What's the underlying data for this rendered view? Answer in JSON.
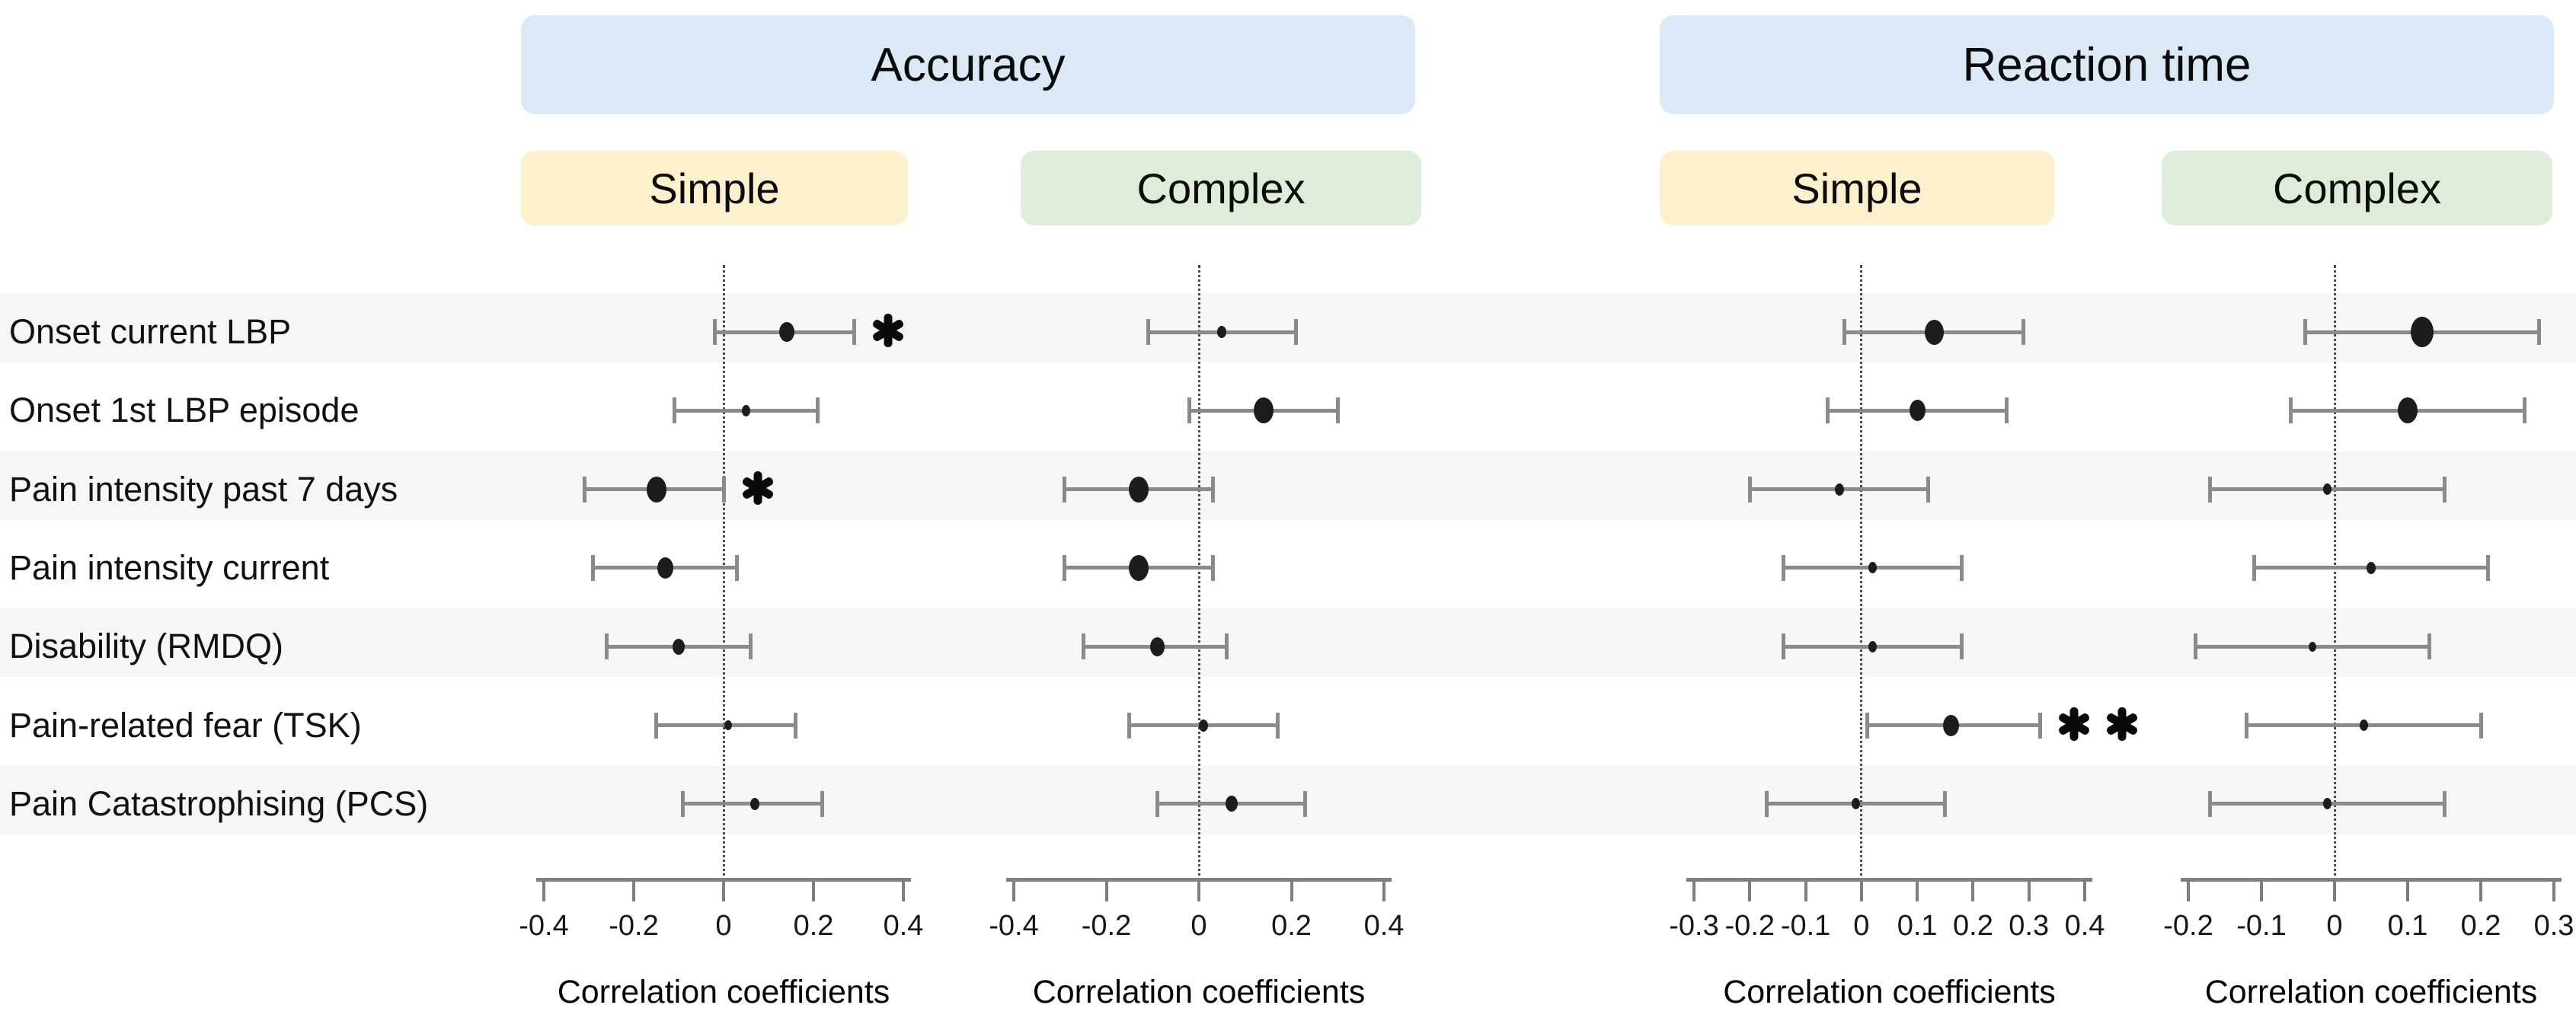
{
  "figure": {
    "group_headers": [
      {
        "label": "Accuracy"
      },
      {
        "label": "Reaction time"
      }
    ],
    "colors": {
      "group_header_bg": "#dbe9f6",
      "simple_header_bg": "#fdf0cd",
      "complex_header_bg": "#ddedd9",
      "stripe": "#f6f6f6",
      "error_bar": "#8a8a8a",
      "marker": "#1c1c1c",
      "zero_line": "#4a4a4a",
      "axis": "#7f7f7f",
      "text": "#000000"
    }
  },
  "rows": [
    "Onset current LBP",
    "Onset 1st LBP episode",
    "Pain intensity past 7 days",
    "Pain intensity current",
    "Disability (RMDQ)",
    "Pain-related fear (TSK)",
    "Pain Catastrophising (PCS)"
  ],
  "chart_data": [
    {
      "type": "scatter",
      "subtype": "forest-dot-ci",
      "group": "Accuracy",
      "condition": "Simple",
      "xlabel": "Correlation coefficients",
      "xlim": [
        -0.45,
        0.45
      ],
      "xticks": [
        -0.4,
        -0.2,
        0,
        0.2,
        0.4
      ],
      "xtick_labels": [
        "-0.4",
        "-0.2",
        "0",
        "0.2",
        "0.4"
      ],
      "zero_reference_line": true,
      "categories": [
        "Onset current LBP",
        "Onset 1st LBP episode",
        "Pain intensity past 7 days",
        "Pain intensity current",
        "Disability (RMDQ)",
        "Pain-related fear (TSK)",
        "Pain Catastrophising (PCS)"
      ],
      "points": [
        {
          "value": 0.14,
          "ci": [
            -0.02,
            0.29
          ],
          "marker_size": 20,
          "significance": "*"
        },
        {
          "value": 0.05,
          "ci": [
            -0.11,
            0.21
          ],
          "marker_size": 11,
          "significance": ""
        },
        {
          "value": -0.15,
          "ci": [
            -0.31,
            0.0
          ],
          "marker_size": 26,
          "significance": "*"
        },
        {
          "value": -0.13,
          "ci": [
            -0.29,
            0.03
          ],
          "marker_size": 21,
          "significance": ""
        },
        {
          "value": -0.1,
          "ci": [
            -0.26,
            0.06
          ],
          "marker_size": 16,
          "significance": ""
        },
        {
          "value": 0.01,
          "ci": [
            -0.15,
            0.16
          ],
          "marker_size": 10,
          "significance": ""
        },
        {
          "value": 0.07,
          "ci": [
            -0.09,
            0.22
          ],
          "marker_size": 12,
          "significance": ""
        }
      ]
    },
    {
      "type": "scatter",
      "subtype": "forest-dot-ci",
      "group": "Accuracy",
      "condition": "Complex",
      "xlabel": "Correlation coefficients",
      "xlim": [
        -0.45,
        0.45
      ],
      "xticks": [
        -0.4,
        -0.2,
        0,
        0.2,
        0.4
      ],
      "xtick_labels": [
        "-0.4",
        "-0.2",
        "0",
        "0.2",
        "0.4"
      ],
      "zero_reference_line": true,
      "categories": [
        "Onset current LBP",
        "Onset 1st LBP episode",
        "Pain intensity past 7 days",
        "Pain intensity current",
        "Disability (RMDQ)",
        "Pain-related fear (TSK)",
        "Pain Catastrophising (PCS)"
      ],
      "points": [
        {
          "value": 0.05,
          "ci": [
            -0.11,
            0.21
          ],
          "marker_size": 12,
          "significance": ""
        },
        {
          "value": 0.14,
          "ci": [
            -0.02,
            0.3
          ],
          "marker_size": 26,
          "significance": ""
        },
        {
          "value": -0.13,
          "ci": [
            -0.29,
            0.03
          ],
          "marker_size": 26,
          "significance": ""
        },
        {
          "value": -0.13,
          "ci": [
            -0.29,
            0.03
          ],
          "marker_size": 26,
          "significance": ""
        },
        {
          "value": -0.09,
          "ci": [
            -0.25,
            0.06
          ],
          "marker_size": 19,
          "significance": ""
        },
        {
          "value": 0.01,
          "ci": [
            -0.15,
            0.17
          ],
          "marker_size": 12,
          "significance": ""
        },
        {
          "value": 0.07,
          "ci": [
            -0.09,
            0.23
          ],
          "marker_size": 16,
          "significance": ""
        }
      ]
    },
    {
      "type": "scatter",
      "subtype": "forest-dot-ci",
      "group": "Reaction time",
      "condition": "Simple",
      "xlabel": "Correlation coefficients",
      "xlim": [
        -0.35,
        0.45
      ],
      "xticks": [
        -0.3,
        -0.2,
        -0.1,
        0,
        0.1,
        0.2,
        0.3,
        0.4
      ],
      "xtick_labels": [
        "-0.3",
        "-0.2",
        "-0.1",
        "0",
        "0.1",
        "0.2",
        "0.3",
        "0.4"
      ],
      "zero_reference_line": true,
      "categories": [
        "Onset current LBP",
        "Onset 1st LBP episode",
        "Pain intensity past 7 days",
        "Pain intensity current",
        "Disability (RMDQ)",
        "Pain-related fear (TSK)",
        "Pain Catastrophising (PCS)"
      ],
      "points": [
        {
          "value": 0.13,
          "ci": [
            -0.03,
            0.29
          ],
          "marker_size": 25,
          "significance": ""
        },
        {
          "value": 0.1,
          "ci": [
            -0.06,
            0.26
          ],
          "marker_size": 21,
          "significance": ""
        },
        {
          "value": -0.04,
          "ci": [
            -0.2,
            0.12
          ],
          "marker_size": 12,
          "significance": ""
        },
        {
          "value": 0.02,
          "ci": [
            -0.14,
            0.18
          ],
          "marker_size": 11,
          "significance": ""
        },
        {
          "value": 0.02,
          "ci": [
            -0.14,
            0.18
          ],
          "marker_size": 11,
          "significance": ""
        },
        {
          "value": 0.16,
          "ci": [
            0.01,
            0.32
          ],
          "marker_size": 21,
          "significance": "**"
        },
        {
          "value": -0.01,
          "ci": [
            -0.17,
            0.15
          ],
          "marker_size": 11,
          "significance": ""
        }
      ]
    },
    {
      "type": "scatter",
      "subtype": "forest-dot-ci",
      "group": "Reaction time",
      "condition": "Complex",
      "xlabel": "Correlation coefficients",
      "xlim": [
        -0.25,
        0.35
      ],
      "xticks": [
        -0.2,
        -0.1,
        0,
        0.1,
        0.2,
        0.3
      ],
      "xtick_labels": [
        "-0.2",
        "-0.1",
        "0",
        "0.1",
        "0.2",
        "0.3"
      ],
      "zero_reference_line": true,
      "categories": [
        "Onset current LBP",
        "Onset 1st LBP episode",
        "Pain intensity past 7 days",
        "Pain intensity current",
        "Disability (RMDQ)",
        "Pain-related fear (TSK)",
        "Pain Catastrophising (PCS)"
      ],
      "points": [
        {
          "value": 0.12,
          "ci": [
            -0.04,
            0.28
          ],
          "marker_size": 30,
          "significance": ""
        },
        {
          "value": 0.1,
          "ci": [
            -0.06,
            0.26
          ],
          "marker_size": 26,
          "significance": ""
        },
        {
          "value": -0.01,
          "ci": [
            -0.17,
            0.15
          ],
          "marker_size": 11,
          "significance": ""
        },
        {
          "value": 0.05,
          "ci": [
            -0.11,
            0.21
          ],
          "marker_size": 12,
          "significance": ""
        },
        {
          "value": -0.03,
          "ci": [
            -0.19,
            0.13
          ],
          "marker_size": 10,
          "significance": ""
        },
        {
          "value": 0.04,
          "ci": [
            -0.12,
            0.2
          ],
          "marker_size": 11,
          "significance": ""
        },
        {
          "value": -0.01,
          "ci": [
            -0.17,
            0.15
          ],
          "marker_size": 11,
          "significance": ""
        }
      ]
    }
  ]
}
